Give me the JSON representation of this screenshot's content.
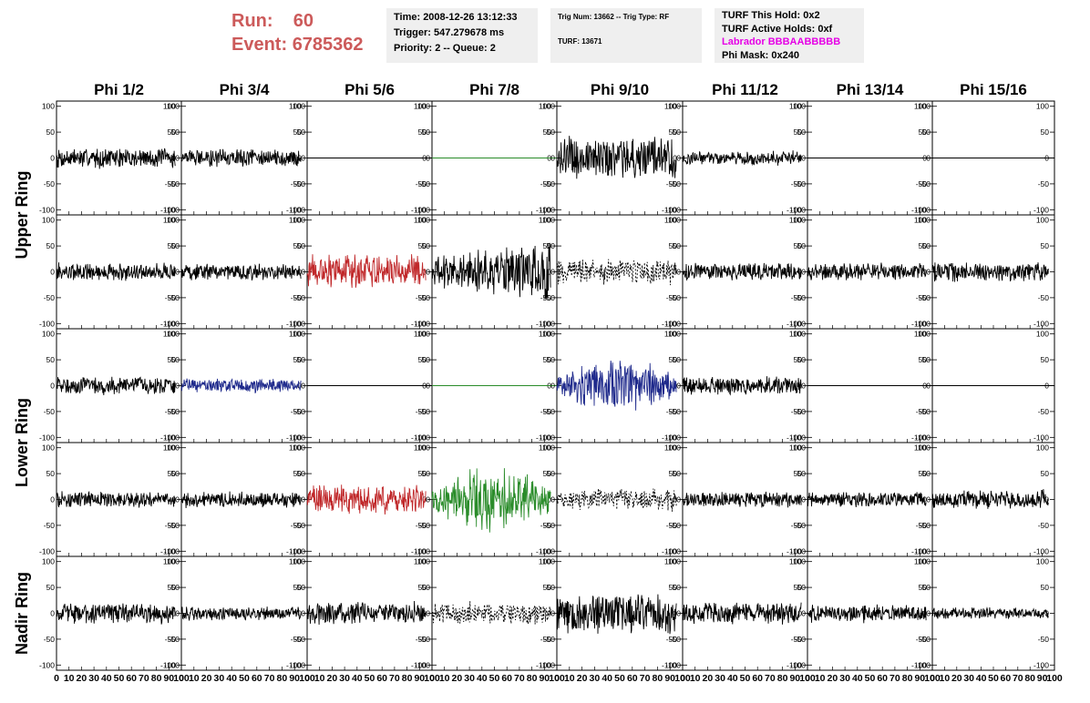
{
  "run": {
    "run_label": "Run:",
    "run_value": "60",
    "event_label": "Event:",
    "event_value": "6785362"
  },
  "info": {
    "time": "Time: 2008-12-26 13:12:33",
    "trigger": "Trigger: 547.279678 ms",
    "priority": "Priority: 2 -- Queue: 2",
    "trig_num": "Trig Num: 13662 -- Trig Type: RF",
    "turf": "TURF: 13671",
    "turf_this_hold": "TURF This Hold: 0x2",
    "turf_active_holds": "TURF Active Holds: 0xf",
    "labrador": "Labrador BBBAABBBBB",
    "phi_mask": "Phi Mask: 0x240"
  },
  "colors": {
    "run_text": "#cc5a5a",
    "labrador_text": "#e600e6",
    "black": "#000000",
    "red": "#c0282a",
    "blue": "#1f2a8c",
    "green": "#2a8c2a"
  },
  "chart_data": {
    "type": "line",
    "columns": [
      "Phi 1/2",
      "Phi 3/4",
      "Phi 5/6",
      "Phi 7/8",
      "Phi 9/10",
      "Phi 11/12",
      "Phi 13/14",
      "Phi 15/16"
    ],
    "ring_labels": [
      "Upper Ring",
      "Lower Ring",
      "Nadir Ring"
    ],
    "xlim": [
      0,
      100
    ],
    "ylim": [
      -110,
      110
    ],
    "y_ticks": [
      100,
      50,
      0,
      -50,
      -100
    ],
    "x_ticks": [
      0,
      10,
      20,
      30,
      40,
      50,
      60,
      70,
      80,
      90,
      100
    ],
    "x_tick_labels": [
      "0",
      "10",
      "20",
      "30",
      "40",
      "50",
      "60",
      "70",
      "80",
      "90",
      "100"
    ],
    "panels": [
      [
        {
          "color": "black",
          "style": "solid",
          "amp": 18,
          "env": "flat"
        },
        {
          "color": "black",
          "style": "solid",
          "amp": 15,
          "env": "flat"
        },
        {
          "color": "black",
          "style": "flat",
          "amp": 0,
          "env": "flat"
        },
        {
          "color": "green",
          "style": "flat",
          "amp": 0,
          "env": "flat"
        },
        {
          "color": "black",
          "style": "solid",
          "amp": 38,
          "env": "flat"
        },
        {
          "color": "black",
          "style": "solid",
          "amp": 13,
          "env": "flat"
        },
        {
          "color": "black",
          "style": "flat",
          "amp": 0,
          "env": "flat"
        },
        {
          "color": "black",
          "style": "flat",
          "amp": 0,
          "env": "flat"
        }
      ],
      [
        {
          "color": "black",
          "style": "solid",
          "amp": 16,
          "env": "flat"
        },
        {
          "color": "black",
          "style": "solid",
          "amp": 14,
          "env": "flat"
        },
        {
          "color": "red",
          "style": "solid",
          "amp": 30,
          "env": "flat"
        },
        {
          "color": "black",
          "style": "solid",
          "amp": 48,
          "env": "grow"
        },
        {
          "color": "black",
          "style": "dashed",
          "amp": 22,
          "env": "flat"
        },
        {
          "color": "black",
          "style": "solid",
          "amp": 15,
          "env": "flat"
        },
        {
          "color": "black",
          "style": "solid",
          "amp": 15,
          "env": "flat"
        },
        {
          "color": "black",
          "style": "solid",
          "amp": 18,
          "env": "flat"
        }
      ],
      [
        {
          "color": "black",
          "style": "solid",
          "amp": 16,
          "env": "flat"
        },
        {
          "color": "blue",
          "style": "solid",
          "amp": 12,
          "env": "flat"
        },
        {
          "color": "black",
          "style": "flat",
          "amp": 0,
          "env": "flat"
        },
        {
          "color": "green",
          "style": "flat",
          "amp": 0,
          "env": "flat"
        },
        {
          "color": "blue",
          "style": "solid",
          "amp": 42,
          "env": "bump"
        },
        {
          "color": "black",
          "style": "solid",
          "amp": 16,
          "env": "flat"
        },
        {
          "color": "black",
          "style": "flat",
          "amp": 0,
          "env": "flat"
        },
        {
          "color": "black",
          "style": "flat",
          "amp": 0,
          "env": "flat"
        }
      ],
      [
        {
          "color": "black",
          "style": "solid",
          "amp": 14,
          "env": "flat"
        },
        {
          "color": "black",
          "style": "solid",
          "amp": 14,
          "env": "flat"
        },
        {
          "color": "red",
          "style": "solid",
          "amp": 26,
          "env": "flat"
        },
        {
          "color": "green",
          "style": "solid",
          "amp": 48,
          "env": "bump"
        },
        {
          "color": "black",
          "style": "dashed",
          "amp": 20,
          "env": "flat"
        },
        {
          "color": "black",
          "style": "solid",
          "amp": 14,
          "env": "flat"
        },
        {
          "color": "black",
          "style": "solid",
          "amp": 13,
          "env": "flat"
        },
        {
          "color": "black",
          "style": "solid",
          "amp": 17,
          "env": "flat"
        }
      ],
      [
        {
          "color": "black",
          "style": "solid",
          "amp": 18,
          "env": "flat"
        },
        {
          "color": "black",
          "style": "solid",
          "amp": 12,
          "env": "flat"
        },
        {
          "color": "black",
          "style": "solid",
          "amp": 20,
          "env": "flat"
        },
        {
          "color": "black",
          "style": "dashed",
          "amp": 20,
          "env": "flat"
        },
        {
          "color": "black",
          "style": "solid",
          "amp": 36,
          "env": "flat"
        },
        {
          "color": "black",
          "style": "solid",
          "amp": 20,
          "env": "flat"
        },
        {
          "color": "black",
          "style": "solid",
          "amp": 16,
          "env": "flat"
        },
        {
          "color": "black",
          "style": "solid",
          "amp": 10,
          "env": "flat"
        }
      ]
    ]
  }
}
